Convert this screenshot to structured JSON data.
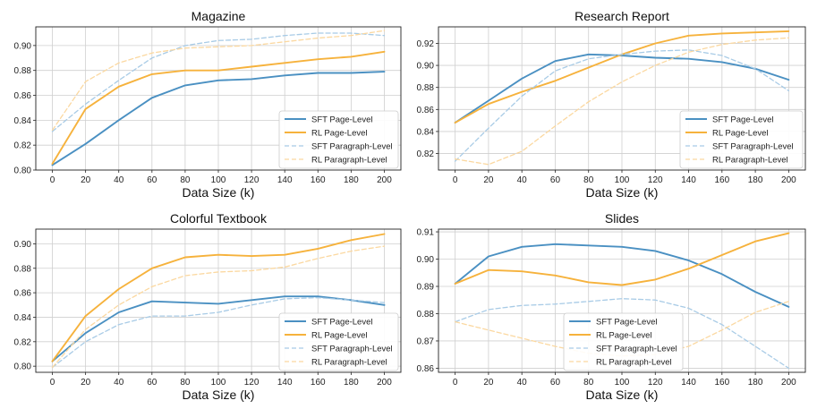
{
  "colors": {
    "sft_page": "#4a90c2",
    "rl_page": "#f6b23c",
    "sft_para": "#a8cbe6",
    "rl_para": "#fbd8a0"
  },
  "chart_data": [
    {
      "type": "line",
      "title": "Magazine",
      "xlabel": "Data Size (k)",
      "ylabel": "",
      "x": [
        0,
        20,
        40,
        60,
        80,
        100,
        120,
        140,
        160,
        180,
        200
      ],
      "xticks": [
        "0",
        "20",
        "40",
        "60",
        "80",
        "100",
        "120",
        "140",
        "160",
        "180",
        "200"
      ],
      "ylim": [
        0.8,
        0.915
      ],
      "yticks": [
        "0.80",
        "0.82",
        "0.84",
        "0.86",
        "0.88",
        "0.90"
      ],
      "legend_position": "lower-right",
      "series": [
        {
          "name": "SFT Page-Level",
          "style": "solid",
          "color_key": "sft_page",
          "values": [
            0.804,
            0.821,
            0.84,
            0.858,
            0.868,
            0.872,
            0.873,
            0.876,
            0.878,
            0.878,
            0.879
          ]
        },
        {
          "name": "RL Page-Level",
          "style": "solid",
          "color_key": "rl_page",
          "values": [
            0.805,
            0.849,
            0.867,
            0.877,
            0.88,
            0.88,
            0.883,
            0.886,
            0.889,
            0.891,
            0.895
          ]
        },
        {
          "name": "SFT Paragraph-Level",
          "style": "dashed",
          "color_key": "sft_para",
          "values": [
            0.831,
            0.853,
            0.872,
            0.89,
            0.9,
            0.904,
            0.905,
            0.908,
            0.91,
            0.91,
            0.908
          ]
        },
        {
          "name": "RL Paragraph-Level",
          "style": "dashed",
          "color_key": "rl_para",
          "values": [
            0.832,
            0.871,
            0.886,
            0.894,
            0.898,
            0.899,
            0.9,
            0.903,
            0.906,
            0.908,
            0.912
          ]
        }
      ]
    },
    {
      "type": "line",
      "title": "Research Report",
      "xlabel": "Data Size (k)",
      "ylabel": "",
      "x": [
        0,
        20,
        40,
        60,
        80,
        100,
        120,
        140,
        160,
        180,
        200
      ],
      "xticks": [
        "0",
        "20",
        "40",
        "60",
        "80",
        "100",
        "120",
        "140",
        "160",
        "180",
        "200"
      ],
      "ylim": [
        0.805,
        0.935
      ],
      "yticks": [
        "0.82",
        "0.84",
        "0.86",
        "0.88",
        "0.90",
        "0.92"
      ],
      "legend_position": "lower-right",
      "series": [
        {
          "name": "SFT Page-Level",
          "style": "solid",
          "color_key": "sft_page",
          "values": [
            0.848,
            0.868,
            0.888,
            0.904,
            0.91,
            0.909,
            0.907,
            0.906,
            0.903,
            0.897,
            0.887
          ]
        },
        {
          "name": "RL Page-Level",
          "style": "solid",
          "color_key": "rl_page",
          "values": [
            0.848,
            0.865,
            0.876,
            0.886,
            0.898,
            0.91,
            0.92,
            0.927,
            0.929,
            0.93,
            0.931
          ]
        },
        {
          "name": "SFT Paragraph-Level",
          "style": "dashed",
          "color_key": "sft_para",
          "values": [
            0.813,
            0.843,
            0.872,
            0.895,
            0.906,
            0.91,
            0.913,
            0.914,
            0.909,
            0.897,
            0.877
          ]
        },
        {
          "name": "RL Paragraph-Level",
          "style": "dashed",
          "color_key": "rl_para",
          "values": [
            0.815,
            0.81,
            0.822,
            0.845,
            0.867,
            0.885,
            0.9,
            0.912,
            0.919,
            0.923,
            0.925
          ]
        }
      ]
    },
    {
      "type": "line",
      "title": "Colorful Textbook",
      "xlabel": "Data Size (k)",
      "ylabel": "",
      "x": [
        0,
        20,
        40,
        60,
        80,
        100,
        120,
        140,
        160,
        180,
        200
      ],
      "xticks": [
        "0",
        "20",
        "40",
        "60",
        "80",
        "100",
        "120",
        "140",
        "160",
        "180",
        "200"
      ],
      "ylim": [
        0.795,
        0.912
      ],
      "yticks": [
        "0.80",
        "0.82",
        "0.84",
        "0.86",
        "0.88",
        "0.90"
      ],
      "legend_position": "lower-right",
      "series": [
        {
          "name": "SFT Page-Level",
          "style": "solid",
          "color_key": "sft_page",
          "values": [
            0.804,
            0.827,
            0.844,
            0.853,
            0.852,
            0.851,
            0.854,
            0.857,
            0.857,
            0.854,
            0.85
          ]
        },
        {
          "name": "RL Page-Level",
          "style": "solid",
          "color_key": "rl_page",
          "values": [
            0.804,
            0.841,
            0.863,
            0.88,
            0.889,
            0.891,
            0.89,
            0.891,
            0.896,
            0.903,
            0.908
          ]
        },
        {
          "name": "SFT Paragraph-Level",
          "style": "dashed",
          "color_key": "sft_para",
          "values": [
            0.799,
            0.82,
            0.834,
            0.841,
            0.841,
            0.844,
            0.85,
            0.855,
            0.856,
            0.854,
            0.852
          ]
        },
        {
          "name": "RL Paragraph-Level",
          "style": "dashed",
          "color_key": "rl_para",
          "values": [
            0.799,
            0.83,
            0.85,
            0.865,
            0.874,
            0.877,
            0.878,
            0.881,
            0.888,
            0.894,
            0.898
          ]
        }
      ]
    },
    {
      "type": "line",
      "title": "Slides",
      "xlabel": "Data Size (k)",
      "ylabel": "",
      "x": [
        0,
        20,
        40,
        60,
        80,
        100,
        120,
        140,
        160,
        180,
        200
      ],
      "xticks": [
        "0",
        "20",
        "40",
        "60",
        "80",
        "100",
        "120",
        "140",
        "160",
        "180",
        "200"
      ],
      "ylim": [
        0.8585,
        0.911
      ],
      "yticks": [
        "0.86",
        "0.87",
        "0.88",
        "0.89",
        "0.90",
        "0.91"
      ],
      "legend_position": "lower-center",
      "series": [
        {
          "name": "SFT Page-Level",
          "style": "solid",
          "color_key": "sft_page",
          "values": [
            0.891,
            0.901,
            0.9045,
            0.9055,
            0.905,
            0.9045,
            0.903,
            0.8995,
            0.8945,
            0.888,
            0.8825
          ]
        },
        {
          "name": "RL Page-Level",
          "style": "solid",
          "color_key": "rl_page",
          "values": [
            0.891,
            0.896,
            0.8955,
            0.894,
            0.8915,
            0.8905,
            0.8925,
            0.8965,
            0.9015,
            0.9065,
            0.9095
          ]
        },
        {
          "name": "SFT Paragraph-Level",
          "style": "dashed",
          "color_key": "sft_para",
          "values": [
            0.877,
            0.8815,
            0.883,
            0.8835,
            0.8845,
            0.8855,
            0.885,
            0.882,
            0.876,
            0.868,
            0.86
          ]
        },
        {
          "name": "RL Paragraph-Level",
          "style": "dashed",
          "color_key": "rl_para",
          "values": [
            0.877,
            0.874,
            0.871,
            0.868,
            0.8655,
            0.8645,
            0.865,
            0.868,
            0.874,
            0.8805,
            0.8845
          ]
        }
      ]
    }
  ]
}
